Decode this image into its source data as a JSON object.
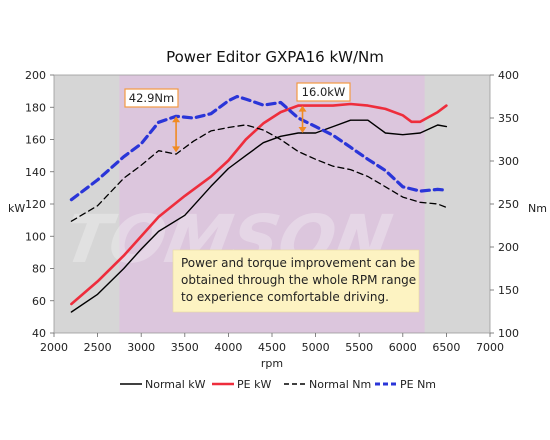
{
  "chart_data": {
    "type": "line",
    "title": "Power Editor GXPA16 kW/Nm",
    "xlabel": "rpm",
    "ylabel_left": "kW",
    "ylabel_right": "Nm",
    "xlim": [
      2000,
      7000
    ],
    "ylim_left": [
      40,
      200
    ],
    "ylim_right": [
      100,
      400
    ],
    "x_ticks": [
      2000,
      2500,
      3000,
      3500,
      4000,
      4500,
      5000,
      5500,
      6000,
      6500,
      7000
    ],
    "y_left_ticks": [
      40,
      60,
      80,
      100,
      120,
      140,
      160,
      180,
      200
    ],
    "y_right_ticks": [
      100,
      150,
      200,
      250,
      300,
      350,
      400
    ],
    "highlight_band_rpm": [
      2750,
      6250
    ],
    "series": [
      {
        "name": "Normal kW",
        "axis": "left",
        "color": "#000000",
        "dash": "solid",
        "x": [
          2200,
          2500,
          2800,
          3000,
          3200,
          3500,
          3800,
          4000,
          4200,
          4400,
          4600,
          4800,
          5000,
          5200,
          5400,
          5600,
          5800,
          6000,
          6200,
          6400,
          6500
        ],
        "y": [
          53,
          64,
          80,
          92,
          103,
          113,
          131,
          142,
          150,
          158,
          162,
          164,
          164,
          168,
          172,
          172,
          164,
          163,
          164,
          169,
          168
        ]
      },
      {
        "name": "PE kW",
        "axis": "left",
        "color": "#ee2d3c",
        "dash": "solid",
        "x": [
          2200,
          2500,
          2800,
          3000,
          3200,
          3500,
          3800,
          4000,
          4200,
          4400,
          4600,
          4800,
          5000,
          5200,
          5400,
          5600,
          5800,
          6000,
          6100,
          6200,
          6400,
          6500
        ],
        "y": [
          58,
          72,
          88,
          100,
          112,
          125,
          137,
          147,
          160,
          170,
          177,
          181,
          181,
          181,
          182,
          181,
          179,
          175,
          171,
          171,
          177,
          181
        ]
      },
      {
        "name": "Normal Nm",
        "axis": "right",
        "color": "#000000",
        "dash": "dashed",
        "x": [
          2200,
          2500,
          2800,
          3000,
          3200,
          3400,
          3600,
          3800,
          4000,
          4200,
          4400,
          4600,
          4800,
          5000,
          5200,
          5400,
          5600,
          5800,
          6000,
          6200,
          6400,
          6500
        ],
        "y": [
          230,
          248,
          280,
          295,
          312,
          308,
          323,
          335,
          339,
          342,
          336,
          325,
          311,
          302,
          294,
          290,
          282,
          270,
          258,
          252,
          250,
          246
        ]
      },
      {
        "name": "PE Nm",
        "axis": "right",
        "color": "#2a35d8",
        "dash": "dashed",
        "x": [
          2200,
          2500,
          2800,
          3000,
          3200,
          3400,
          3600,
          3800,
          4000,
          4100,
          4200,
          4400,
          4600,
          4800,
          5000,
          5200,
          5400,
          5600,
          5800,
          6000,
          6200,
          6400,
          6500
        ],
        "y": [
          255,
          278,
          305,
          320,
          345,
          352,
          350,
          355,
          370,
          375,
          372,
          365,
          368,
          350,
          340,
          330,
          316,
          302,
          289,
          270,
          265,
          267,
          266
        ]
      }
    ],
    "annotations": [
      {
        "label": "42.9Nm",
        "axis": "right",
        "rpm": 3400,
        "from": 310,
        "to": 352
      },
      {
        "label": "16.0kW",
        "axis": "left",
        "rpm": 4850,
        "from": 164,
        "to": 181
      }
    ],
    "note_lines": [
      "Power and torque improvement can be",
      "obtained through the whole RPM range",
      "to experience comfortable driving."
    ],
    "legend_position": "bottom",
    "grid": false,
    "watermark": "TOMSON"
  },
  "colors": {
    "plot_bg": "#d6d6d6",
    "band": "#dcc6dd",
    "note_bg": "#fdf3c2",
    "annot_border": "#f29a43",
    "annot_arrow": "#f08a22"
  }
}
